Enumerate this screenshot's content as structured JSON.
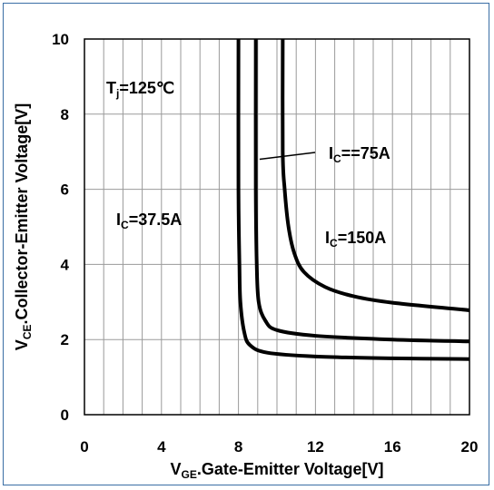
{
  "chart_data": {
    "type": "line",
    "xlabel": {
      "main": "V",
      "sub": "GE",
      "rest": ".Gate-Emitter Voltage[V]"
    },
    "ylabel": {
      "main": "V",
      "sub": "CE",
      "rest": ".Collector-Emitter Voltage[V]"
    },
    "xlim": [
      0,
      20
    ],
    "ylim": [
      0,
      10
    ],
    "x_ticks": [
      "0",
      "4",
      "8",
      "12",
      "16",
      "20"
    ],
    "y_ticks": [
      "0",
      "2",
      "4",
      "6",
      "8",
      "10"
    ],
    "grid": true,
    "series": [
      {
        "name": "IC=37.5A",
        "points": [
          [
            8.0,
            10
          ],
          [
            8.0,
            6
          ],
          [
            8.05,
            4
          ],
          [
            8.1,
            3
          ],
          [
            8.3,
            2.2
          ],
          [
            8.6,
            1.85
          ],
          [
            9.5,
            1.65
          ],
          [
            12,
            1.55
          ],
          [
            16,
            1.5
          ],
          [
            20,
            1.48
          ]
        ]
      },
      {
        "name": "IC==75A",
        "points": [
          [
            8.9,
            10
          ],
          [
            8.9,
            6
          ],
          [
            8.95,
            4
          ],
          [
            9.05,
            3
          ],
          [
            9.4,
            2.5
          ],
          [
            10,
            2.25
          ],
          [
            12,
            2.1
          ],
          [
            16,
            2.0
          ],
          [
            20,
            1.95
          ]
        ]
      },
      {
        "name": "IC=150A",
        "points": [
          [
            10.3,
            10
          ],
          [
            10.3,
            7
          ],
          [
            10.4,
            6
          ],
          [
            10.6,
            5
          ],
          [
            10.9,
            4.3
          ],
          [
            11.4,
            3.8
          ],
          [
            12.5,
            3.4
          ],
          [
            14,
            3.15
          ],
          [
            16,
            2.98
          ],
          [
            20,
            2.78
          ]
        ]
      }
    ],
    "annotations": {
      "tj": {
        "main": "T",
        "sub": "j",
        "rest": "=125℃"
      },
      "ic1": {
        "main": "I",
        "sub": "C",
        "rest": "=37.5A"
      },
      "ic2": {
        "main": "I",
        "sub": "C",
        "rest": "==75A"
      },
      "ic3": {
        "main": "I",
        "sub": "C",
        "rest": "=150A"
      }
    }
  }
}
